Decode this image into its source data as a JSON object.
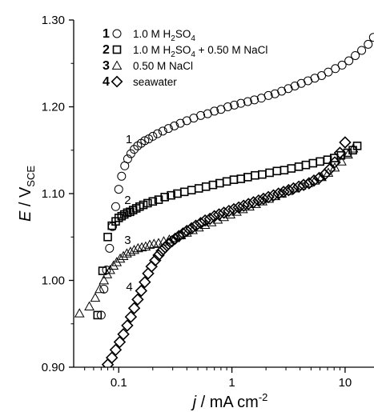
{
  "chart_data": {
    "type": "scatter",
    "x_scale": "log",
    "xlim": [
      0.04,
      18
    ],
    "ylim": [
      0.9,
      1.3
    ],
    "x_ticks": [
      0.1,
      1,
      10
    ],
    "x_tick_labels": [
      "0.1",
      "1",
      "10"
    ],
    "y_ticks": [
      0.9,
      1.0,
      1.1,
      1.2,
      1.3
    ],
    "y_tick_labels": [
      "0.90",
      "1.00",
      "1.10",
      "1.20",
      "1.30"
    ],
    "xlabel": {
      "italic": "j",
      "rest": " / mA cm",
      "sup": "-2"
    },
    "ylabel": {
      "italic": "E",
      "rest": " / V",
      "sub": "SCE"
    },
    "grid": false,
    "legend_position": "top",
    "series": [
      {
        "num": "1",
        "legend": {
          "base": "1.0 M H",
          "sub1": "2",
          "mid": "SO",
          "sub2": "4",
          "tail": ""
        },
        "marker": "circle",
        "curve_label": {
          "text": "1",
          "x": 0.115,
          "y": 1.158
        },
        "x": [
          0.07,
          0.074,
          0.078,
          0.083,
          0.088,
          0.094,
          0.1,
          0.106,
          0.113,
          0.12,
          0.128,
          0.137,
          0.147,
          0.158,
          0.17,
          0.184,
          0.2,
          0.22,
          0.245,
          0.275,
          0.31,
          0.35,
          0.4,
          0.46,
          0.53,
          0.61,
          0.7,
          0.8,
          0.92,
          1.05,
          1.2,
          1.38,
          1.58,
          1.82,
          2.1,
          2.4,
          2.75,
          3.15,
          3.6,
          4.1,
          4.7,
          5.4,
          6.2,
          7.1,
          8.2,
          9.4,
          10.8,
          12.3,
          14.0,
          16.0,
          17.8
        ],
        "y": [
          0.96,
          0.99,
          1.012,
          1.037,
          1.062,
          1.085,
          1.105,
          1.12,
          1.132,
          1.14,
          1.146,
          1.151,
          1.155,
          1.158,
          1.161,
          1.163,
          1.166,
          1.169,
          1.172,
          1.175,
          1.178,
          1.181,
          1.184,
          1.187,
          1.19,
          1.192,
          1.195,
          1.197,
          1.2,
          1.202,
          1.204,
          1.206,
          1.208,
          1.21,
          1.213,
          1.215,
          1.218,
          1.221,
          1.224,
          1.227,
          1.23,
          1.233,
          1.236,
          1.24,
          1.244,
          1.248,
          1.253,
          1.259,
          1.265,
          1.272,
          1.28
        ]
      },
      {
        "num": "2",
        "legend": {
          "base": "1.0 M H",
          "sub1": "2",
          "mid": "SO",
          "sub2": "4",
          "tail": " + 0.50 M NaCl"
        },
        "marker": "square",
        "curve_label": {
          "text": "2",
          "x": 0.112,
          "y": 1.088
        },
        "x": [
          0.065,
          0.072,
          0.08,
          0.087,
          0.094,
          0.1,
          0.106,
          0.112,
          0.119,
          0.126,
          0.134,
          0.143,
          0.153,
          0.165,
          0.18,
          0.2,
          0.225,
          0.255,
          0.29,
          0.33,
          0.38,
          0.44,
          0.51,
          0.59,
          0.68,
          0.78,
          0.9,
          1.04,
          1.2,
          1.38,
          1.6,
          1.85,
          2.15,
          2.5,
          2.9,
          3.35,
          3.9,
          4.5,
          5.2,
          6.0,
          7.0,
          8.0,
          9.2,
          10.5,
          11.7,
          12.8
        ],
        "y": [
          0.96,
          1.011,
          1.05,
          1.063,
          1.068,
          1.072,
          1.074,
          1.076,
          1.078,
          1.079,
          1.081,
          1.083,
          1.085,
          1.087,
          1.089,
          1.091,
          1.093,
          1.096,
          1.098,
          1.1,
          1.102,
          1.104,
          1.106,
          1.108,
          1.11,
          1.112,
          1.114,
          1.116,
          1.117,
          1.119,
          1.121,
          1.122,
          1.124,
          1.126,
          1.127,
          1.129,
          1.131,
          1.133,
          1.135,
          1.137,
          1.139,
          1.141,
          1.144,
          1.147,
          1.15,
          1.155
        ]
      },
      {
        "num": "3",
        "legend": {
          "base": "0.50 M NaCl"
        },
        "marker": "triangle",
        "curve_label": {
          "text": "3",
          "x": 0.112,
          "y": 1.042
        },
        "x": [
          0.045,
          0.055,
          0.062,
          0.068,
          0.074,
          0.079,
          0.084,
          0.09,
          0.096,
          0.103,
          0.11,
          0.118,
          0.127,
          0.137,
          0.148,
          0.16,
          0.173,
          0.188,
          0.205,
          0.225,
          0.25,
          0.28,
          0.315,
          0.355,
          0.4,
          0.45,
          0.51,
          0.58,
          0.66,
          0.75,
          0.85,
          0.97,
          1.1,
          1.25,
          1.43,
          1.63,
          1.86,
          2.12,
          2.42,
          2.76,
          3.15,
          3.6,
          4.1,
          4.7,
          5.4,
          6.2,
          7.1,
          8.1,
          9.3,
          10.6,
          11.8
        ],
        "y": [
          0.962,
          0.97,
          0.98,
          0.99,
          1.0,
          1.007,
          1.012,
          1.017,
          1.021,
          1.025,
          1.028,
          1.031,
          1.033,
          1.035,
          1.037,
          1.038,
          1.039,
          1.041,
          1.042,
          1.043,
          1.045,
          1.047,
          1.049,
          1.052,
          1.055,
          1.058,
          1.061,
          1.064,
          1.067,
          1.07,
          1.073,
          1.076,
          1.079,
          1.082,
          1.085,
          1.088,
          1.091,
          1.094,
          1.097,
          1.1,
          1.103,
          1.106,
          1.109,
          1.112,
          1.115,
          1.119,
          1.124,
          1.13,
          1.137,
          1.145,
          1.152
        ]
      },
      {
        "num": "4",
        "legend": {
          "base": "seawater"
        },
        "marker": "diamond",
        "curve_label": {
          "text": "4",
          "x": 0.116,
          "y": 0.988
        },
        "x": [
          0.08,
          0.087,
          0.094,
          0.102,
          0.11,
          0.119,
          0.128,
          0.137,
          0.147,
          0.158,
          0.17,
          0.182,
          0.195,
          0.21,
          0.225,
          0.24,
          0.257,
          0.275,
          0.295,
          0.315,
          0.34,
          0.37,
          0.4,
          0.44,
          0.48,
          0.53,
          0.58,
          0.64,
          0.7,
          0.77,
          0.85,
          0.94,
          1.04,
          1.15,
          1.27,
          1.4,
          1.55,
          1.72,
          1.9,
          2.1,
          2.33,
          2.58,
          2.86,
          3.17,
          3.5,
          3.9,
          4.3,
          4.8,
          5.3,
          5.9,
          6.6,
          7.3,
          8.1,
          9.0,
          10.0
        ],
        "y": [
          0.903,
          0.911,
          0.92,
          0.929,
          0.938,
          0.948,
          0.958,
          0.968,
          0.978,
          0.988,
          0.998,
          1.008,
          1.016,
          1.023,
          1.029,
          1.034,
          1.038,
          1.042,
          1.045,
          1.048,
          1.051,
          1.054,
          1.057,
          1.06,
          1.063,
          1.066,
          1.069,
          1.071,
          1.074,
          1.076,
          1.078,
          1.08,
          1.082,
          1.084,
          1.086,
          1.088,
          1.09,
          1.092,
          1.094,
          1.096,
          1.098,
          1.1,
          1.102,
          1.104,
          1.106,
          1.108,
          1.11,
          1.112,
          1.115,
          1.118,
          1.122,
          1.128,
          1.136,
          1.147,
          1.159
        ]
      }
    ]
  }
}
